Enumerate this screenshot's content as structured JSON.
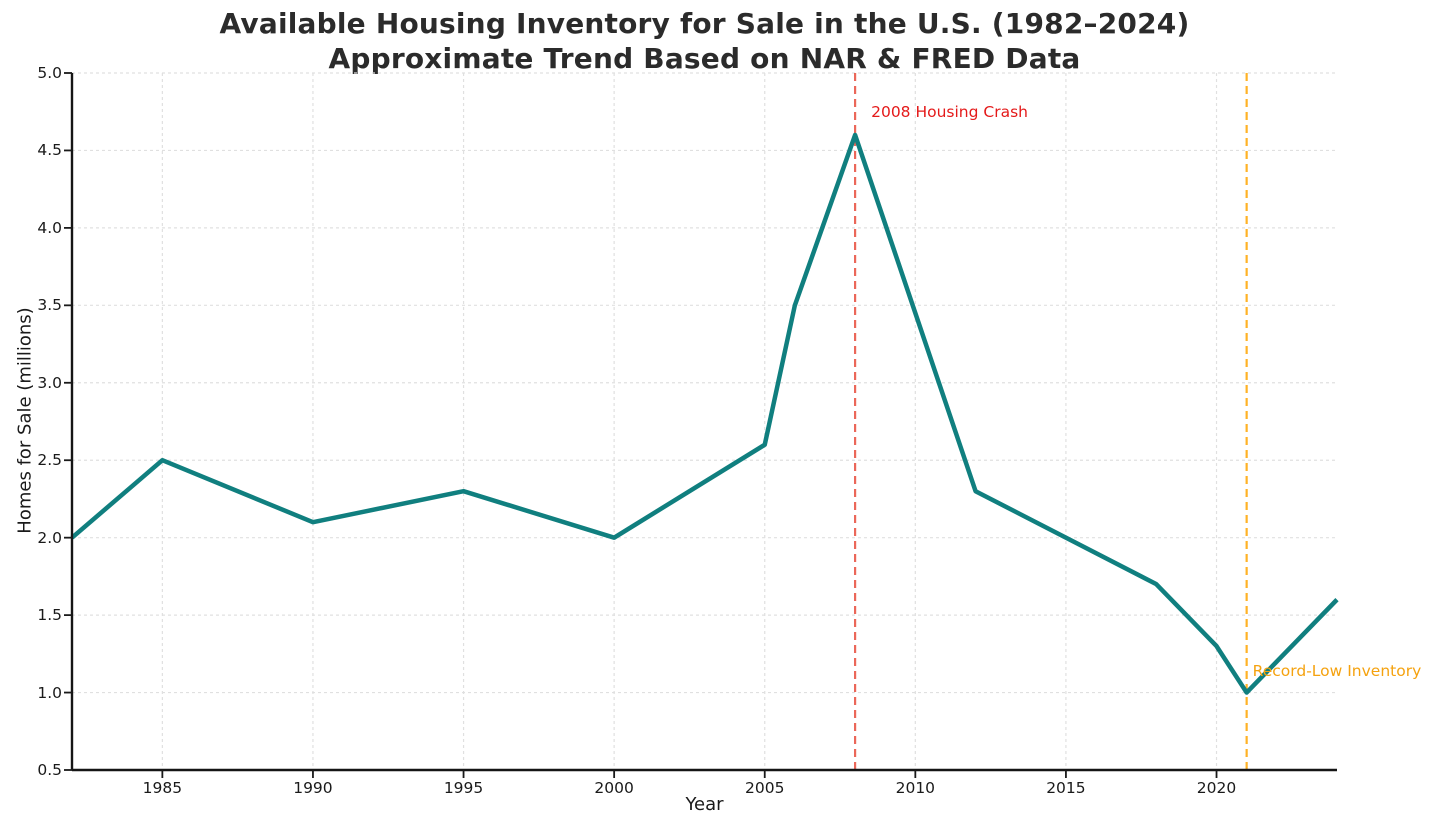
{
  "title": {
    "line1": "Available Housing Inventory for Sale in the U.S. (1982–2024)",
    "line2": "Approximate Trend Based on NAR & FRED Data"
  },
  "chart_data": {
    "type": "line",
    "title": "Available Housing Inventory for Sale in the U.S. (1982–2024) — Approximate Trend Based on NAR & FRED Data",
    "xlabel": "Year",
    "ylabel": "Homes for Sale (millions)",
    "x": [
      1982,
      1985,
      1990,
      1995,
      2000,
      2005,
      2006,
      2008,
      2012,
      2018,
      2020,
      2021,
      2024
    ],
    "values": [
      2.0,
      2.5,
      2.1,
      2.3,
      2.0,
      2.6,
      3.5,
      4.6,
      2.3,
      1.7,
      1.3,
      1.0,
      1.6
    ],
    "xlim": [
      1982,
      2024
    ],
    "ylim": [
      0.5,
      5.0
    ],
    "x_ticks": [
      1985,
      1990,
      1995,
      2000,
      2005,
      2010,
      2015,
      2020
    ],
    "x_tick_labels": [
      "1985",
      "1990",
      "1995",
      "2000",
      "2005",
      "2010",
      "2015",
      "2020"
    ],
    "y_ticks": [
      0.5,
      1.0,
      1.5,
      2.0,
      2.5,
      3.0,
      3.5,
      4.0,
      4.5,
      5.0
    ],
    "y_tick_labels": [
      "0.5",
      "1.0",
      "1.5",
      "2.0",
      "2.5",
      "3.0",
      "3.5",
      "4.0",
      "4.5",
      "5.0"
    ],
    "grid": true,
    "legend": "none",
    "line_color": "#107f7f",
    "grid_color": "#e0e0e0",
    "annotations": [
      {
        "label": "2008 Housing Crash",
        "x": 2008,
        "label_y": 4.75,
        "label_dx": 16,
        "text_color": "#e41a1a",
        "line_color": "#e74c3c"
      },
      {
        "label": "Record-Low Inventory",
        "x": 2021,
        "label_y": 1.14,
        "label_dx": 6,
        "text_color": "#f5a20f",
        "line_color": "#ffa500"
      }
    ]
  }
}
